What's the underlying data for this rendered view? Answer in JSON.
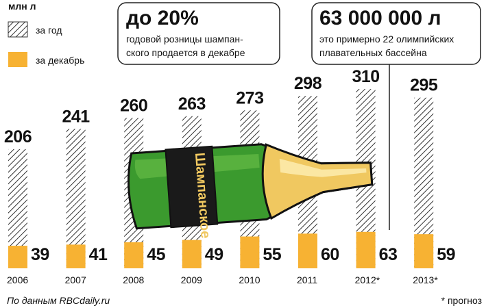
{
  "chart_data": {
    "type": "bar",
    "unit": "млн л",
    "categories": [
      "2006",
      "2007",
      "2008",
      "2009",
      "2010",
      "2011",
      "2012*",
      "2013*"
    ],
    "series": [
      {
        "name": "за год",
        "color": "#333333",
        "values": [
          206,
          241,
          260,
          263,
          273,
          298,
          310,
          295
        ]
      },
      {
        "name": "за декабрь",
        "color": "#f7b233",
        "values": [
          39,
          41,
          45,
          49,
          55,
          60,
          63,
          59
        ]
      }
    ]
  },
  "bottle_label": "Шампанское",
  "callout1": {
    "heading": "до 20%",
    "lines": [
      "годовой розницы шампан-",
      "ского продается в декабре"
    ]
  },
  "callout2": {
    "heading": "63 000 000 л",
    "lines": [
      "это примерно 22 олимпийских",
      "плавательных бассейна"
    ]
  },
  "source": "По данным RBCdaily.ru",
  "footnote": "* прогноз"
}
